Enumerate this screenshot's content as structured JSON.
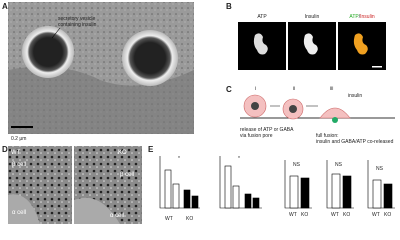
{
  "panels": {
    "A": {
      "letter": "A",
      "label_lines": [
        "secretory vesicle",
        "containing insulin"
      ],
      "scale": "0.2 μm"
    },
    "B": {
      "letter": "B",
      "channels": [
        "ATP",
        "Insulin"
      ],
      "merge": [
        "ATP",
        "/",
        "Insulin"
      ]
    },
    "C": {
      "letter": "C",
      "steps": [
        "i",
        "ii",
        "iii"
      ],
      "insulin": "insulin",
      "fusion_pore": [
        "release of ATP or GABA",
        "via fusion pore"
      ],
      "full_fusion": [
        "full fusion:",
        "insulin and GABA/ATP co-released"
      ]
    },
    "D": {
      "letter": "D",
      "genotypes": [
        "WT",
        "KO"
      ],
      "beta": "β cell",
      "alpha": "α cell"
    },
    "E": {
      "letter": "E",
      "significance": [
        "*",
        "*",
        "NS",
        "NS",
        "NS"
      ],
      "groups": [
        "WT",
        "KO"
      ]
    }
  }
}
